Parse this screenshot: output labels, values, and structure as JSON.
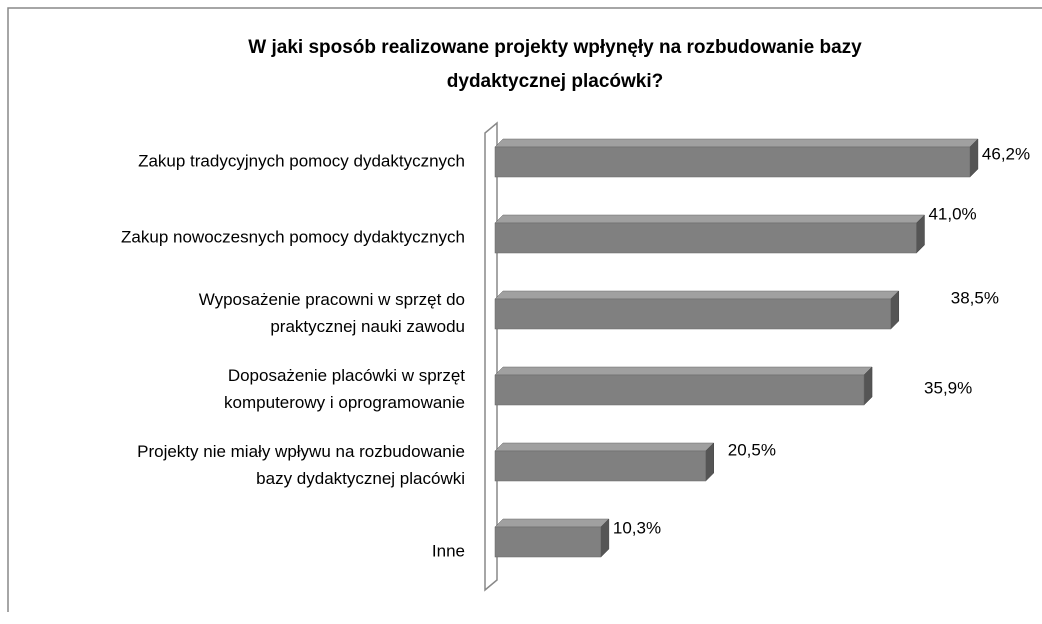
{
  "chart_data": {
    "type": "bar3d-horizontal",
    "title": [
      "W jaki sposób realizowane projekty wpłynęły na rozbudowanie bazy",
      "dydaktycznej placówki?"
    ],
    "categories": [
      [
        "Zakup tradycyjnych pomocy dydaktycznych"
      ],
      [
        "Zakup nowoczesnych pomocy dydaktycznych"
      ],
      [
        "Wyposażenie pracowni w sprzęt do",
        "praktycznej nauki zawodu"
      ],
      [
        "Doposażenie placówki w sprzęt",
        "komputerowy i oprogramowanie"
      ],
      [
        "Projekty nie miały wpływu na rozbudowanie",
        "bazy dydaktycznej placówki"
      ],
      [
        "Inne"
      ]
    ],
    "values": [
      46.2,
      41.0,
      38.5,
      35.9,
      20.5,
      10.3
    ],
    "value_labels": [
      "46,2%",
      "41,0%",
      "38,5%",
      "35,9%",
      "20,5%",
      "10,3%"
    ],
    "color": "#808080"
  }
}
